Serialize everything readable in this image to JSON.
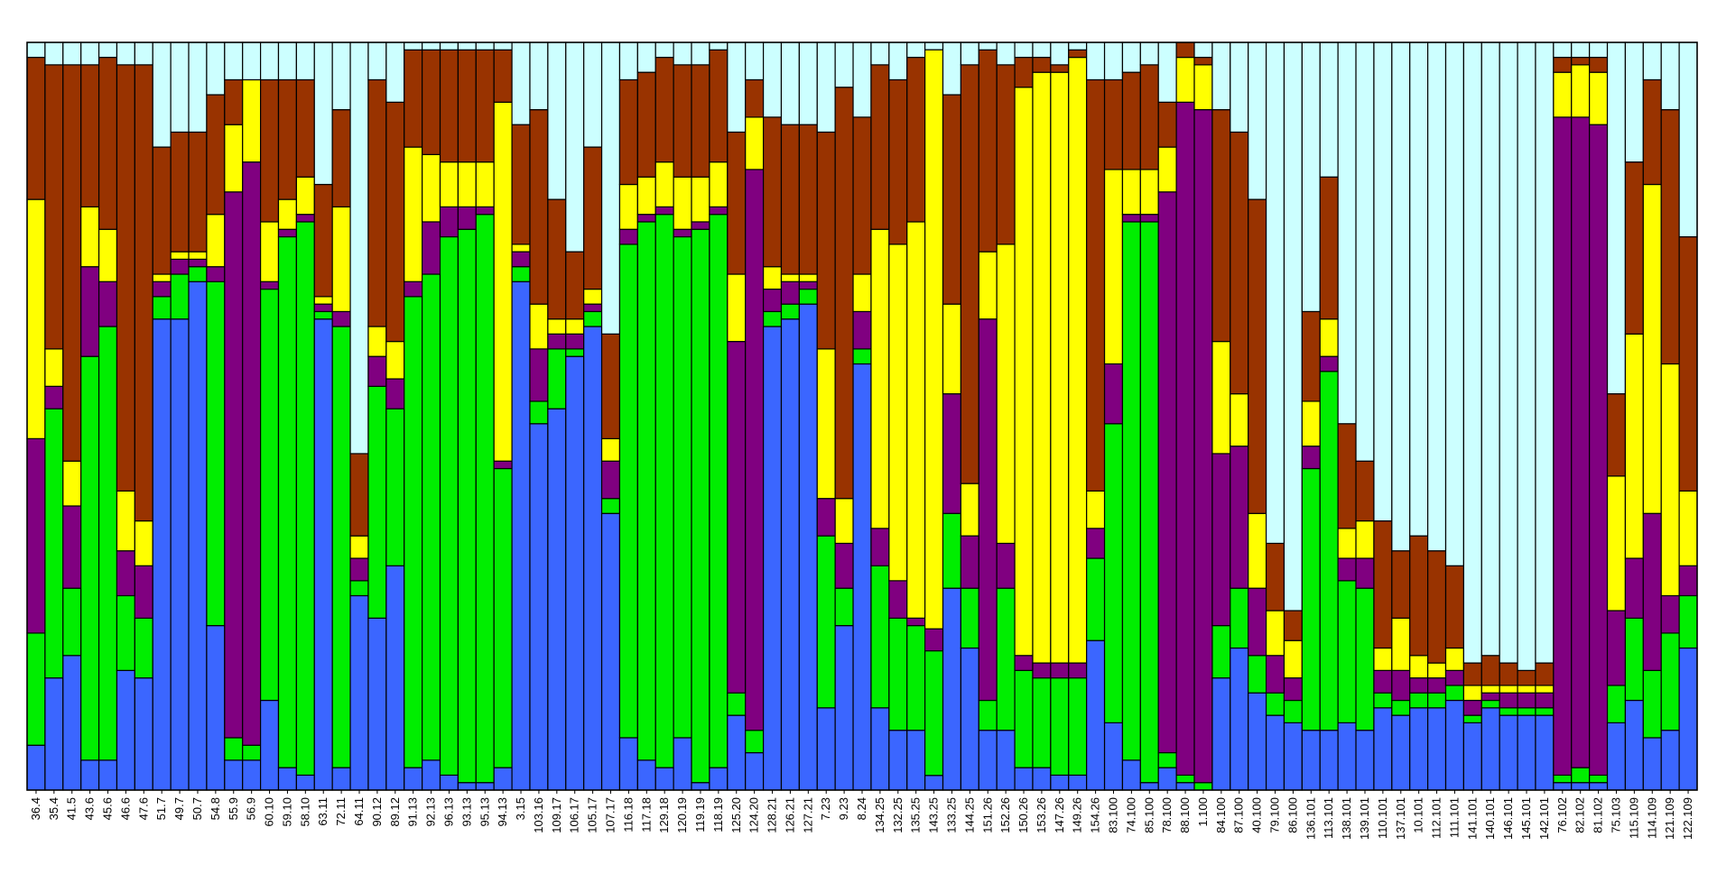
{
  "chart_data": {
    "type": "bar",
    "stacked": true,
    "title": "",
    "xlabel": "",
    "ylabel": "",
    "ylim": [
      0,
      1
    ],
    "grid": false,
    "legend": "none",
    "segment_order": [
      "blue",
      "green",
      "purple",
      "yellow",
      "brown",
      "cyan"
    ],
    "colors": {
      "blue": "#3b66ff",
      "green": "#00ee00",
      "purple": "#800080",
      "yellow": "#ffff00",
      "brown": "#993300",
      "cyan": "#ccffff"
    },
    "bars": [
      {
        "label": "36.4",
        "values": [
          0.06,
          0.15,
          0.26,
          0.32,
          0.19,
          0.02
        ]
      },
      {
        "label": "35.4",
        "values": [
          0.15,
          0.36,
          0.03,
          0.05,
          0.38,
          0.03
        ]
      },
      {
        "label": "41.5",
        "values": [
          0.18,
          0.09,
          0.11,
          0.06,
          0.53,
          0.03
        ]
      },
      {
        "label": "43.6",
        "values": [
          0.04,
          0.54,
          0.12,
          0.08,
          0.19,
          0.03
        ]
      },
      {
        "label": "45.6",
        "values": [
          0.04,
          0.58,
          0.06,
          0.07,
          0.23,
          0.02
        ]
      },
      {
        "label": "46.6",
        "values": [
          0.16,
          0.1,
          0.06,
          0.08,
          0.57,
          0.03
        ]
      },
      {
        "label": "47.6",
        "values": [
          0.15,
          0.08,
          0.07,
          0.06,
          0.61,
          0.03
        ]
      },
      {
        "label": "51.7",
        "values": [
          0.63,
          0.03,
          0.02,
          0.01,
          0.17,
          0.14
        ]
      },
      {
        "label": "49.7",
        "values": [
          0.63,
          0.06,
          0.02,
          0.01,
          0.16,
          0.12
        ]
      },
      {
        "label": "50.7",
        "values": [
          0.68,
          0.02,
          0.01,
          0.01,
          0.16,
          0.12
        ]
      },
      {
        "label": "54.8",
        "values": [
          0.22,
          0.46,
          0.02,
          0.07,
          0.16,
          0.07
        ]
      },
      {
        "label": "55.9",
        "values": [
          0.04,
          0.03,
          0.73,
          0.09,
          0.06,
          0.05
        ]
      },
      {
        "label": "56.9",
        "values": [
          0.04,
          0.02,
          0.78,
          0.11,
          0.0,
          0.05
        ]
      },
      {
        "label": "60.10",
        "values": [
          0.12,
          0.55,
          0.01,
          0.08,
          0.19,
          0.05
        ]
      },
      {
        "label": "59.10",
        "values": [
          0.03,
          0.71,
          0.01,
          0.04,
          0.16,
          0.05
        ]
      },
      {
        "label": "58.10",
        "values": [
          0.02,
          0.74,
          0.01,
          0.05,
          0.13,
          0.05
        ]
      },
      {
        "label": "63.11",
        "values": [
          0.63,
          0.01,
          0.01,
          0.01,
          0.15,
          0.19
        ]
      },
      {
        "label": "72.11",
        "values": [
          0.03,
          0.59,
          0.02,
          0.14,
          0.13,
          0.09
        ]
      },
      {
        "label": "64.11",
        "values": [
          0.26,
          0.02,
          0.03,
          0.03,
          0.11,
          0.55
        ]
      },
      {
        "label": "90.12",
        "values": [
          0.23,
          0.31,
          0.04,
          0.04,
          0.33,
          0.05
        ]
      },
      {
        "label": "89.12",
        "values": [
          0.3,
          0.21,
          0.04,
          0.05,
          0.32,
          0.08
        ]
      },
      {
        "label": "91.13",
        "values": [
          0.03,
          0.63,
          0.02,
          0.18,
          0.13,
          0.01
        ]
      },
      {
        "label": "92.13",
        "values": [
          0.04,
          0.65,
          0.07,
          0.09,
          0.14,
          0.01
        ]
      },
      {
        "label": "96.13",
        "values": [
          0.02,
          0.72,
          0.04,
          0.06,
          0.15,
          0.01
        ]
      },
      {
        "label": "93.13",
        "values": [
          0.01,
          0.74,
          0.03,
          0.06,
          0.15,
          0.01
        ]
      },
      {
        "label": "95.13",
        "values": [
          0.01,
          0.76,
          0.01,
          0.06,
          0.15,
          0.01
        ]
      },
      {
        "label": "94.13",
        "values": [
          0.03,
          0.4,
          0.01,
          0.48,
          0.07,
          0.01
        ]
      },
      {
        "label": "3.15",
        "values": [
          0.68,
          0.02,
          0.02,
          0.01,
          0.16,
          0.11
        ]
      },
      {
        "label": "103.16",
        "values": [
          0.49,
          0.03,
          0.07,
          0.06,
          0.26,
          0.09
        ]
      },
      {
        "label": "109.17",
        "values": [
          0.51,
          0.08,
          0.02,
          0.02,
          0.16,
          0.21
        ]
      },
      {
        "label": "106.17",
        "values": [
          0.58,
          0.01,
          0.02,
          0.02,
          0.09,
          0.28
        ]
      },
      {
        "label": "105.17",
        "values": [
          0.62,
          0.02,
          0.01,
          0.02,
          0.19,
          0.14
        ]
      },
      {
        "label": "107.17",
        "values": [
          0.37,
          0.02,
          0.05,
          0.03,
          0.14,
          0.39
        ]
      },
      {
        "label": "116.18",
        "values": [
          0.07,
          0.66,
          0.02,
          0.06,
          0.14,
          0.05
        ]
      },
      {
        "label": "117.18",
        "values": [
          0.04,
          0.72,
          0.01,
          0.05,
          0.14,
          0.04
        ]
      },
      {
        "label": "129.18",
        "values": [
          0.03,
          0.74,
          0.01,
          0.06,
          0.14,
          0.02
        ]
      },
      {
        "label": "120.19",
        "values": [
          0.07,
          0.67,
          0.01,
          0.07,
          0.15,
          0.03
        ]
      },
      {
        "label": "119.19",
        "values": [
          0.01,
          0.74,
          0.01,
          0.06,
          0.15,
          0.03
        ]
      },
      {
        "label": "118.19",
        "values": [
          0.03,
          0.74,
          0.01,
          0.06,
          0.15,
          0.01
        ]
      },
      {
        "label": "125.20",
        "values": [
          0.1,
          0.03,
          0.47,
          0.09,
          0.19,
          0.12
        ]
      },
      {
        "label": "124.20",
        "values": [
          0.05,
          0.03,
          0.75,
          0.07,
          0.05,
          0.05
        ]
      },
      {
        "label": "128.21",
        "values": [
          0.62,
          0.02,
          0.03,
          0.03,
          0.2,
          0.1
        ]
      },
      {
        "label": "126.21",
        "values": [
          0.63,
          0.02,
          0.03,
          0.01,
          0.2,
          0.11
        ]
      },
      {
        "label": "127.21",
        "values": [
          0.65,
          0.02,
          0.01,
          0.01,
          0.2,
          0.11
        ]
      },
      {
        "label": "7.23",
        "values": [
          0.11,
          0.23,
          0.05,
          0.2,
          0.29,
          0.12
        ]
      },
      {
        "label": "9.23",
        "values": [
          0.22,
          0.05,
          0.06,
          0.06,
          0.55,
          0.06
        ]
      },
      {
        "label": "8.24",
        "values": [
          0.57,
          0.02,
          0.05,
          0.05,
          0.21,
          0.1
        ]
      },
      {
        "label": "134.25",
        "values": [
          0.11,
          0.19,
          0.05,
          0.4,
          0.22,
          0.03
        ]
      },
      {
        "label": "132.25",
        "values": [
          0.08,
          0.15,
          0.05,
          0.45,
          0.22,
          0.05
        ]
      },
      {
        "label": "135.25",
        "values": [
          0.08,
          0.14,
          0.01,
          0.53,
          0.22,
          0.02
        ]
      },
      {
        "label": "143.25",
        "values": [
          0.02,
          0.17,
          0.03,
          0.79,
          0.0,
          0.01
        ]
      },
      {
        "label": "133.25",
        "values": [
          0.27,
          0.1,
          0.16,
          0.12,
          0.28,
          0.07
        ]
      },
      {
        "label": "144.25",
        "values": [
          0.19,
          0.08,
          0.07,
          0.07,
          0.56,
          0.03
        ]
      },
      {
        "label": "151.26",
        "values": [
          0.08,
          0.04,
          0.51,
          0.09,
          0.27,
          0.01
        ]
      },
      {
        "label": "152.26",
        "values": [
          0.08,
          0.19,
          0.06,
          0.4,
          0.24,
          0.03
        ]
      },
      {
        "label": "150.26",
        "values": [
          0.03,
          0.13,
          0.02,
          0.76,
          0.04,
          0.02
        ]
      },
      {
        "label": "153.26",
        "values": [
          0.03,
          0.12,
          0.02,
          0.79,
          0.02,
          0.02
        ]
      },
      {
        "label": "147.26",
        "values": [
          0.02,
          0.13,
          0.02,
          0.79,
          0.01,
          0.03
        ]
      },
      {
        "label": "149.26",
        "values": [
          0.02,
          0.13,
          0.02,
          0.81,
          0.01,
          0.01
        ]
      },
      {
        "label": "154.26",
        "values": [
          0.2,
          0.11,
          0.04,
          0.05,
          0.55,
          0.05
        ]
      },
      {
        "label": "83.100",
        "values": [
          0.09,
          0.4,
          0.08,
          0.26,
          0.12,
          0.05
        ]
      },
      {
        "label": "74.100",
        "values": [
          0.04,
          0.72,
          0.01,
          0.06,
          0.13,
          0.04
        ]
      },
      {
        "label": "85.100",
        "values": [
          0.01,
          0.75,
          0.01,
          0.06,
          0.14,
          0.03
        ]
      },
      {
        "label": "78.100",
        "values": [
          0.03,
          0.02,
          0.75,
          0.06,
          0.06,
          0.08
        ]
      },
      {
        "label": "88.100",
        "values": [
          0.01,
          0.01,
          0.9,
          0.06,
          0.02,
          0.0
        ]
      },
      {
        "label": "1.100",
        "values": [
          0.0,
          0.01,
          0.9,
          0.06,
          0.01,
          0.02
        ]
      },
      {
        "label": "84.100",
        "values": [
          0.15,
          0.07,
          0.23,
          0.15,
          0.31,
          0.09
        ]
      },
      {
        "label": "87.100",
        "values": [
          0.19,
          0.08,
          0.19,
          0.07,
          0.35,
          0.12
        ]
      },
      {
        "label": "40.100",
        "values": [
          0.13,
          0.05,
          0.09,
          0.1,
          0.42,
          0.21
        ]
      },
      {
        "label": "79.100",
        "values": [
          0.1,
          0.03,
          0.05,
          0.06,
          0.09,
          0.67
        ]
      },
      {
        "label": "86.100",
        "values": [
          0.09,
          0.03,
          0.03,
          0.05,
          0.04,
          0.76
        ]
      },
      {
        "label": "136.101",
        "values": [
          0.08,
          0.35,
          0.03,
          0.06,
          0.12,
          0.36
        ]
      },
      {
        "label": "113.101",
        "values": [
          0.08,
          0.48,
          0.02,
          0.05,
          0.19,
          0.18
        ]
      },
      {
        "label": "138.101",
        "values": [
          0.09,
          0.19,
          0.03,
          0.04,
          0.14,
          0.51
        ]
      },
      {
        "label": "139.101",
        "values": [
          0.08,
          0.19,
          0.04,
          0.05,
          0.08,
          0.56
        ]
      },
      {
        "label": "110.101",
        "values": [
          0.11,
          0.02,
          0.03,
          0.03,
          0.17,
          0.64
        ]
      },
      {
        "label": "137.101",
        "values": [
          0.1,
          0.02,
          0.04,
          0.07,
          0.09,
          0.68
        ]
      },
      {
        "label": "10.101",
        "values": [
          0.11,
          0.02,
          0.02,
          0.03,
          0.16,
          0.66
        ]
      },
      {
        "label": "112.101",
        "values": [
          0.11,
          0.02,
          0.02,
          0.02,
          0.15,
          0.68
        ]
      },
      {
        "label": "111.101",
        "values": [
          0.12,
          0.02,
          0.02,
          0.03,
          0.11,
          0.7
        ]
      },
      {
        "label": "141.101",
        "values": [
          0.09,
          0.01,
          0.02,
          0.02,
          0.03,
          0.83
        ]
      },
      {
        "label": "140.101",
        "values": [
          0.11,
          0.01,
          0.01,
          0.01,
          0.04,
          0.82
        ]
      },
      {
        "label": "146.101",
        "values": [
          0.1,
          0.01,
          0.02,
          0.01,
          0.03,
          0.83
        ]
      },
      {
        "label": "145.101",
        "values": [
          0.1,
          0.01,
          0.02,
          0.01,
          0.02,
          0.84
        ]
      },
      {
        "label": "142.101",
        "values": [
          0.1,
          0.01,
          0.02,
          0.01,
          0.03,
          0.83
        ]
      },
      {
        "label": "76.102",
        "values": [
          0.01,
          0.01,
          0.88,
          0.06,
          0.02,
          0.02
        ]
      },
      {
        "label": "82.102",
        "values": [
          0.01,
          0.02,
          0.87,
          0.07,
          0.01,
          0.02
        ]
      },
      {
        "label": "81.102",
        "values": [
          0.01,
          0.01,
          0.87,
          0.07,
          0.02,
          0.02
        ]
      },
      {
        "label": "75.103",
        "values": [
          0.09,
          0.05,
          0.1,
          0.18,
          0.11,
          0.47
        ]
      },
      {
        "label": "115.109",
        "values": [
          0.12,
          0.11,
          0.08,
          0.3,
          0.23,
          0.16
        ]
      },
      {
        "label": "114.109",
        "values": [
          0.07,
          0.09,
          0.21,
          0.44,
          0.14,
          0.05
        ]
      },
      {
        "label": "121.109",
        "values": [
          0.08,
          0.13,
          0.05,
          0.31,
          0.34,
          0.09
        ]
      },
      {
        "label": "122.109",
        "values": [
          0.19,
          0.07,
          0.04,
          0.1,
          0.34,
          0.26
        ]
      }
    ]
  }
}
